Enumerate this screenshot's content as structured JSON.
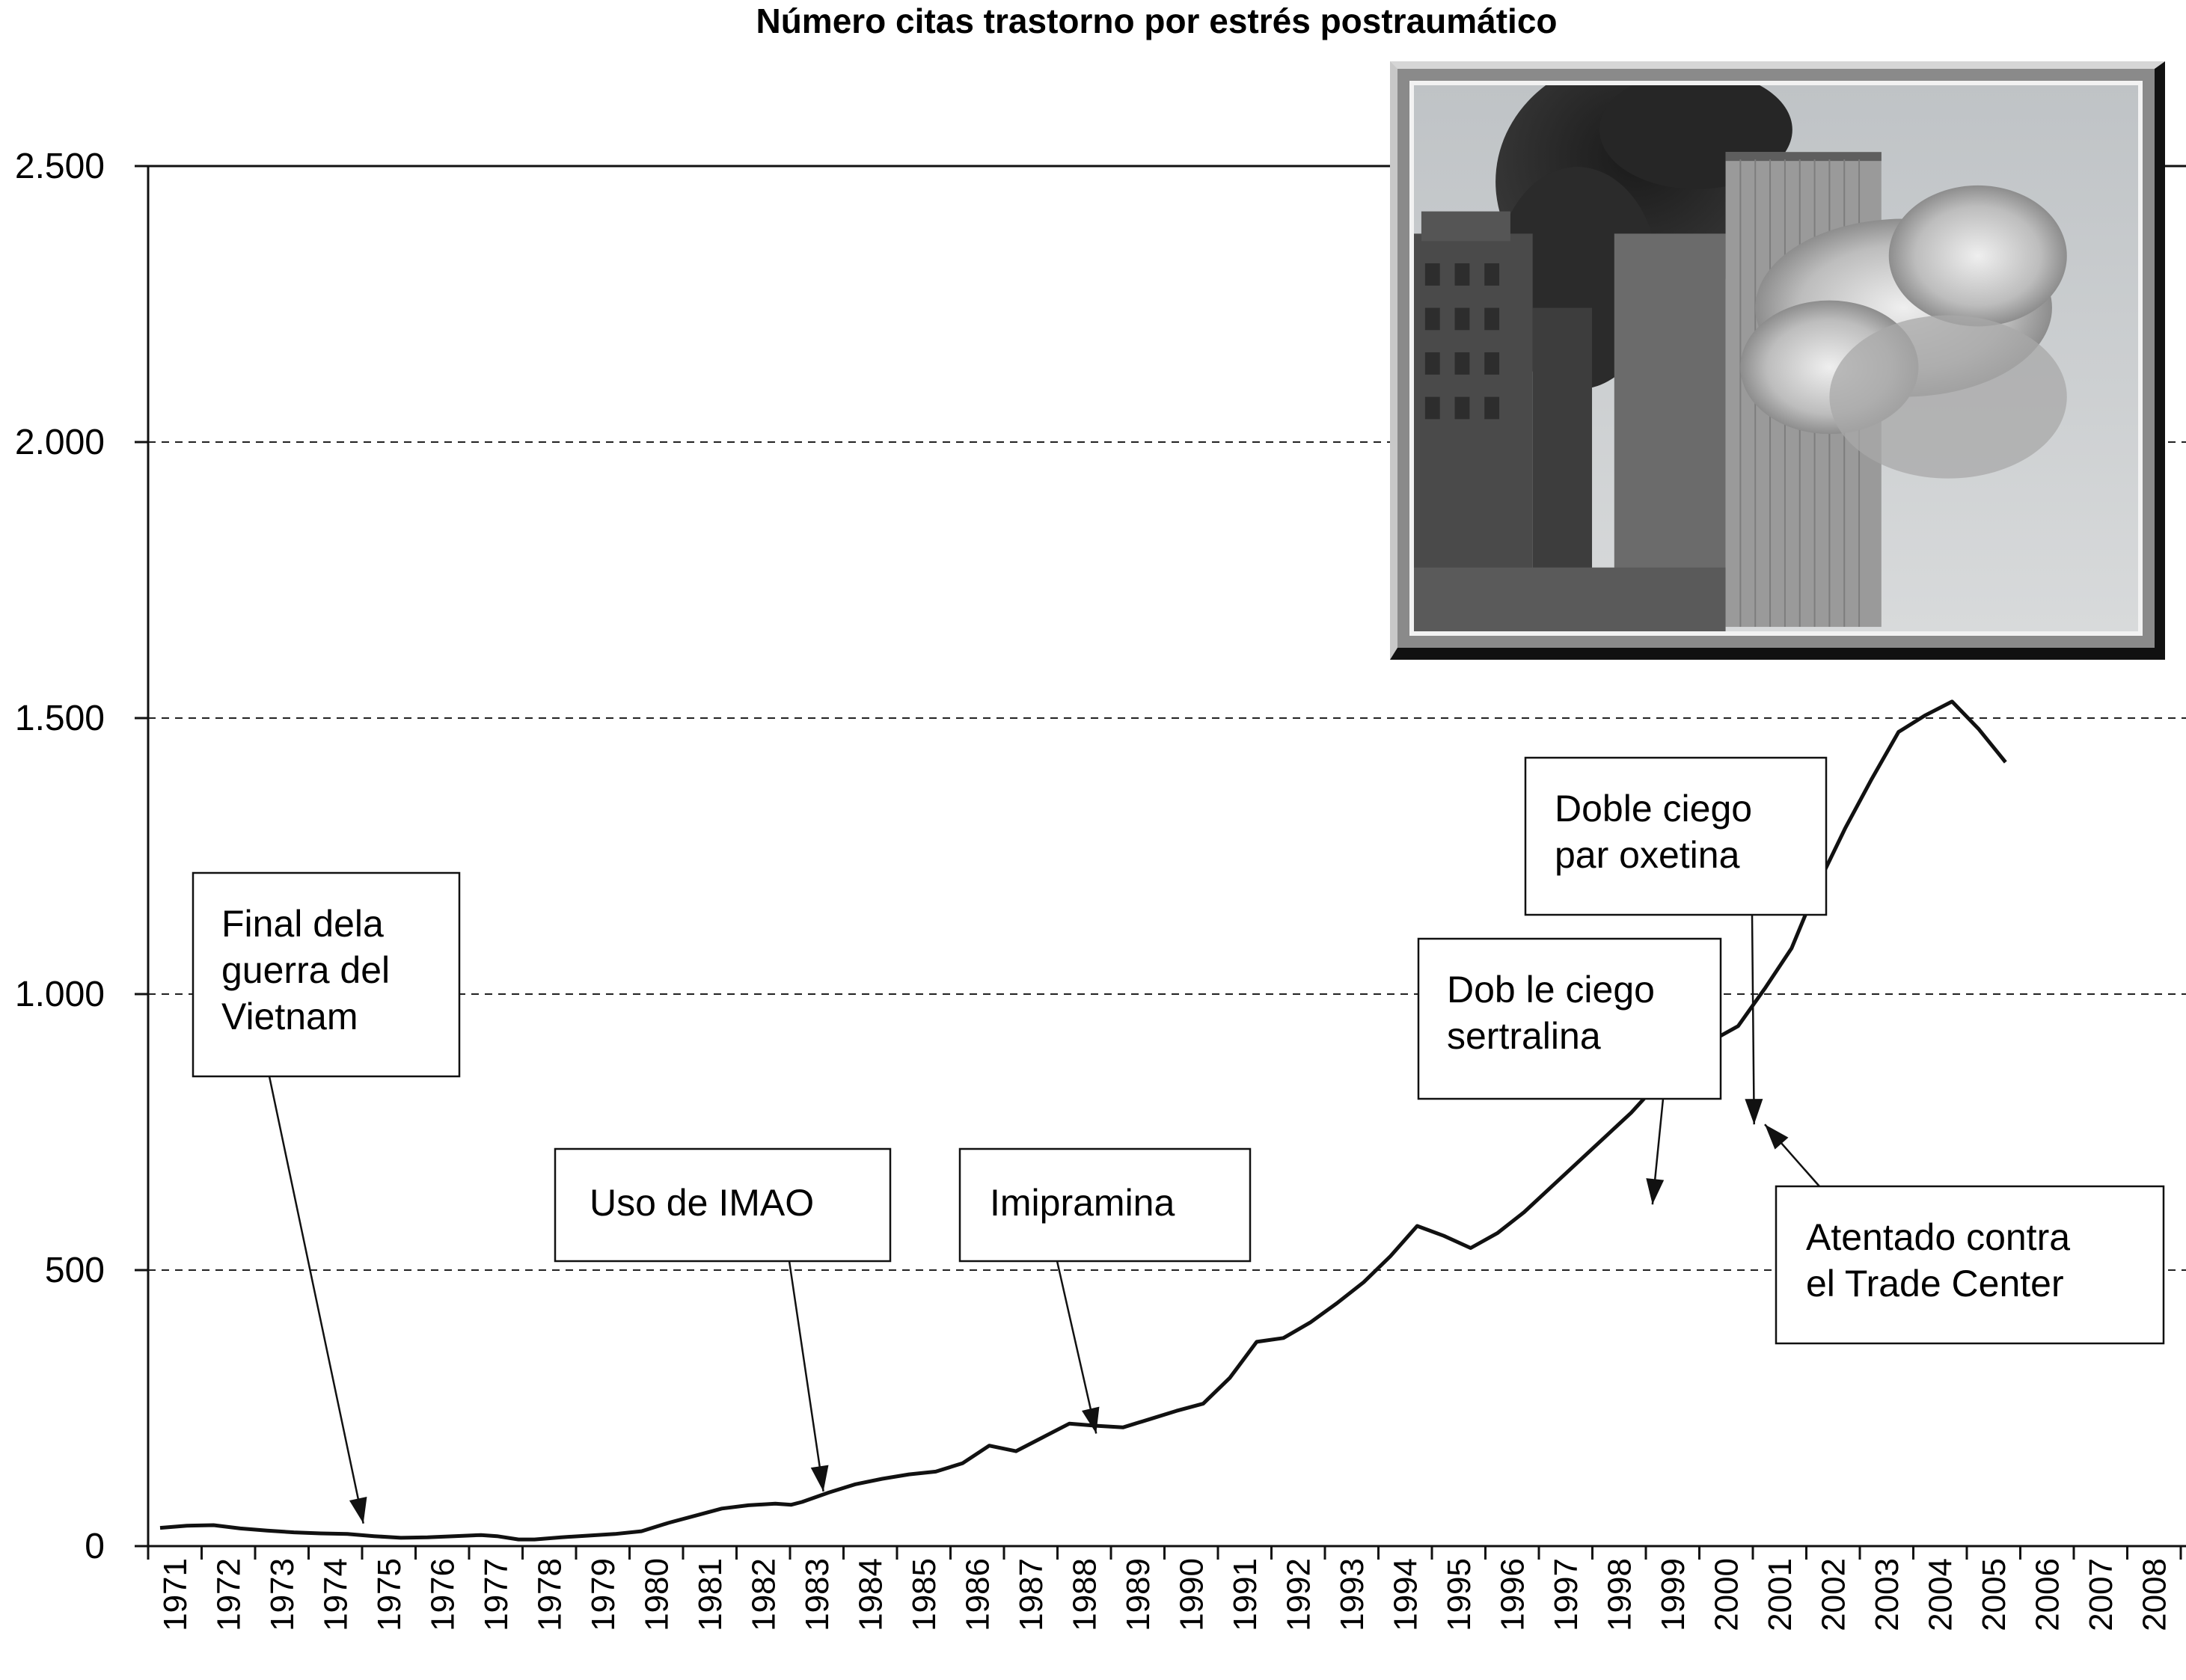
{
  "chart_data": {
    "type": "line",
    "title": "Número citas trastorno por estrés postraumático",
    "xlabel": "",
    "ylabel": "",
    "ylim": [
      0,
      2500
    ],
    "yticks": [
      0,
      500,
      1000,
      1500,
      2000,
      2500
    ],
    "ytick_labels": [
      "0",
      "500",
      "1.000",
      "1.500",
      "2.000",
      "2.500"
    ],
    "grid": "horizontal dashed",
    "categories": [
      "1971",
      "1972",
      "1973",
      "1974",
      "1975",
      "1976",
      "1977",
      "1978",
      "1979",
      "1980",
      "1981",
      "1982",
      "1983",
      "1984",
      "1985",
      "1986",
      "1987",
      "1988",
      "1989",
      "1990",
      "1991",
      "1992",
      "1993",
      "1994",
      "1995",
      "1996",
      "1997",
      "1998",
      "1999",
      "2000",
      "2001",
      "2002",
      "2003",
      "2004",
      "2005",
      "2006",
      "2007",
      "2008"
    ],
    "points": [
      {
        "x": 1971.0,
        "y": 33
      },
      {
        "x": 1971.5,
        "y": 37
      },
      {
        "x": 1972.0,
        "y": 38
      },
      {
        "x": 1972.5,
        "y": 32
      },
      {
        "x": 1973.0,
        "y": 28
      },
      {
        "x": 1973.5,
        "y": 25
      },
      {
        "x": 1974.0,
        "y": 23
      },
      {
        "x": 1974.5,
        "y": 22
      },
      {
        "x": 1975.0,
        "y": 18
      },
      {
        "x": 1975.5,
        "y": 15
      },
      {
        "x": 1976.0,
        "y": 16
      },
      {
        "x": 1976.5,
        "y": 18
      },
      {
        "x": 1977.0,
        "y": 20
      },
      {
        "x": 1977.3,
        "y": 18
      },
      {
        "x": 1977.7,
        "y": 12
      },
      {
        "x": 1978.0,
        "y": 12
      },
      {
        "x": 1978.5,
        "y": 16
      },
      {
        "x": 1979.0,
        "y": 19
      },
      {
        "x": 1979.5,
        "y": 22
      },
      {
        "x": 1980.0,
        "y": 27
      },
      {
        "x": 1980.5,
        "y": 42
      },
      {
        "x": 1981.0,
        "y": 55
      },
      {
        "x": 1981.5,
        "y": 68
      },
      {
        "x": 1982.0,
        "y": 74
      },
      {
        "x": 1982.5,
        "y": 77
      },
      {
        "x": 1982.8,
        "y": 75
      },
      {
        "x": 1983.0,
        "y": 80
      },
      {
        "x": 1983.5,
        "y": 97
      },
      {
        "x": 1984.0,
        "y": 112
      },
      {
        "x": 1984.5,
        "y": 122
      },
      {
        "x": 1985.0,
        "y": 130
      },
      {
        "x": 1985.5,
        "y": 135
      },
      {
        "x": 1986.0,
        "y": 150
      },
      {
        "x": 1986.5,
        "y": 182
      },
      {
        "x": 1987.0,
        "y": 172
      },
      {
        "x": 1987.5,
        "y": 197
      },
      {
        "x": 1988.0,
        "y": 222
      },
      {
        "x": 1988.5,
        "y": 218
      },
      {
        "x": 1989.0,
        "y": 215
      },
      {
        "x": 1989.5,
        "y": 230
      },
      {
        "x": 1990.0,
        "y": 245
      },
      {
        "x": 1990.5,
        "y": 258
      },
      {
        "x": 1991.0,
        "y": 305
      },
      {
        "x": 1991.5,
        "y": 370
      },
      {
        "x": 1992.0,
        "y": 377
      },
      {
        "x": 1992.5,
        "y": 405
      },
      {
        "x": 1993.0,
        "y": 440
      },
      {
        "x": 1993.5,
        "y": 478
      },
      {
        "x": 1994.0,
        "y": 525
      },
      {
        "x": 1994.5,
        "y": 580
      },
      {
        "x": 1995.0,
        "y": 562
      },
      {
        "x": 1995.5,
        "y": 540
      },
      {
        "x": 1996.0,
        "y": 567
      },
      {
        "x": 1996.5,
        "y": 605
      },
      {
        "x": 1997.0,
        "y": 650
      },
      {
        "x": 1997.5,
        "y": 695
      },
      {
        "x": 1998.0,
        "y": 740
      },
      {
        "x": 1998.5,
        "y": 785
      },
      {
        "x": 1999.0,
        "y": 838
      },
      {
        "x": 1999.5,
        "y": 888
      },
      {
        "x": 2000.0,
        "y": 915
      },
      {
        "x": 2000.5,
        "y": 942
      },
      {
        "x": 2001.0,
        "y": 1010
      },
      {
        "x": 2001.5,
        "y": 1083
      },
      {
        "x": 2002.0,
        "y": 1200
      },
      {
        "x": 2002.5,
        "y": 1300
      },
      {
        "x": 2003.0,
        "y": 1390
      },
      {
        "x": 2003.5,
        "y": 1475
      },
      {
        "x": 2004.0,
        "y": 1505
      },
      {
        "x": 2004.5,
        "y": 1530
      },
      {
        "x": 2005.0,
        "y": 1480
      },
      {
        "x": 2005.5,
        "y": 1420
      }
    ],
    "annotations": [
      {
        "lines": [
          "Final dela",
          "guerra del",
          "Vietnam"
        ],
        "target": {
          "x": 1974.8,
          "y": 22
        }
      },
      {
        "lines": [
          "Uso de IMAO"
        ],
        "target": {
          "x": 1983.4,
          "y": 80
        }
      },
      {
        "lines": [
          "Imipramina"
        ],
        "target": {
          "x": 1988.5,
          "y": 185
        }
      },
      {
        "lines": [
          "Dob le ciego",
          "sertralina"
        ],
        "target": {
          "x": 1998.9,
          "y": 600
        }
      },
      {
        "lines": [
          "Doble ciego",
          "par oxetina"
        ],
        "target": {
          "x": 2000.8,
          "y": 745
        }
      },
      {
        "lines": [
          "Atentado contra",
          "el Trade Center"
        ],
        "target": {
          "x": 2001.0,
          "y": 745
        }
      }
    ]
  },
  "photo": {
    "subject": "twin towers attack photograph",
    "frame_colors": {
      "light": "#d6d6d6",
      "dark": "#111111"
    }
  }
}
